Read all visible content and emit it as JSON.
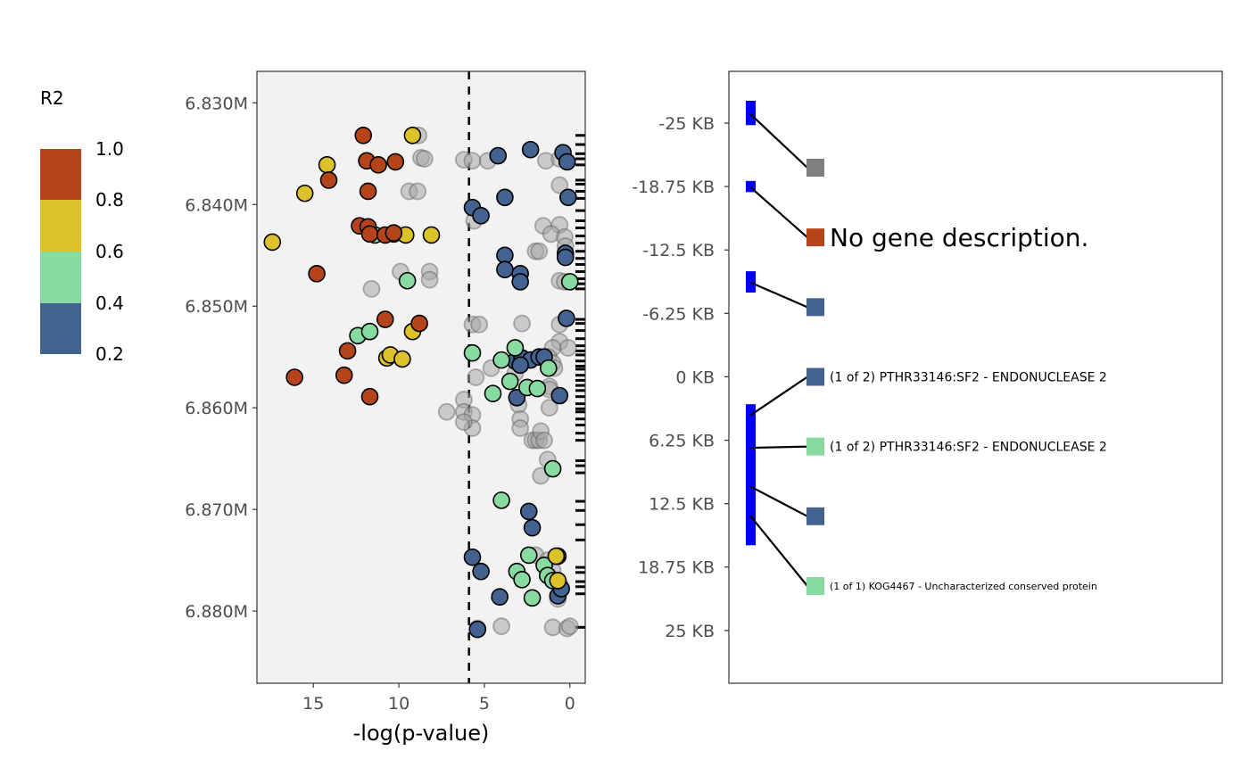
{
  "chart_data": [
    {
      "type": "scatter",
      "xlabel": "-log(p-value)",
      "ylabel": "",
      "xlim": [
        18.3,
        -0.9
      ],
      "x_reversed": true,
      "ylim": [
        6.8269,
        6.8871
      ],
      "x_ticks": [
        15,
        10,
        5,
        0
      ],
      "x_tick_labels": [
        "15",
        "10",
        "5",
        "0"
      ],
      "y_ticks": [
        6.83,
        6.84,
        6.85,
        6.86,
        6.87,
        6.88
      ],
      "y_tick_labels": [
        "6.830M",
        "6.840M",
        "6.850M",
        "6.860M",
        "6.870M",
        "6.880M"
      ],
      "threshold_line": 5.9,
      "grid": false,
      "background": "#F2F2F2",
      "legend": {
        "title": "R2",
        "placement": "left",
        "bins": [
          {
            "label_low": "0.2",
            "label_high": "0.4",
            "color": "#44628F"
          },
          {
            "label_low": "0.4",
            "label_high": "0.6",
            "color": "#87DBA0"
          },
          {
            "label_low": "0.6",
            "label_high": "0.8",
            "color": "#DCC12B"
          },
          {
            "label_low": "0.8",
            "label_high": "1.0",
            "color": "#B5441A"
          }
        ],
        "labels": [
          "1.0",
          "0.8",
          "0.6",
          "0.4",
          "0.2"
        ]
      },
      "series": [
        {
          "r2_bin": "none",
          "color": "#A8A8A8",
          "points": [
            [
              8.85,
              6.8332
            ],
            [
              8.7,
              6.8354
            ],
            [
              8.5,
              6.8355
            ],
            [
              6.2,
              6.8356
            ],
            [
              5.7,
              6.8357
            ],
            [
              4.8,
              6.8357
            ],
            [
              9.4,
              6.8387
            ],
            [
              8.9,
              6.8387
            ],
            [
              1.4,
              6.8357
            ],
            [
              0.6,
              6.8355
            ],
            [
              0.6,
              6.8381
            ],
            [
              1.56,
              6.8421
            ],
            [
              0.6,
              6.842
            ],
            [
              1.1,
              6.8429
            ],
            [
              0.3,
              6.8432
            ],
            [
              0.26,
              6.8441
            ],
            [
              2.0,
              6.8446
            ],
            [
              1.8,
              6.8446
            ],
            [
              5.6,
              6.8416
            ],
            [
              9.9,
              6.8466
            ],
            [
              8.2,
              6.8466
            ],
            [
              8.2,
              6.8474
            ],
            [
              11.6,
              6.8483
            ],
            [
              0.6,
              6.8475
            ],
            [
              0.3,
              6.8476
            ],
            [
              5.7,
              6.8518
            ],
            [
              5.3,
              6.8518
            ],
            [
              2.8,
              6.8517
            ],
            [
              0.6,
              6.8518
            ],
            [
              0.6,
              6.8535
            ],
            [
              0.1,
              6.8541
            ],
            [
              1.0,
              6.8541
            ],
            [
              4.6,
              6.8561
            ],
            [
              5.5,
              6.857
            ],
            [
              6.2,
              6.8592
            ],
            [
              7.2,
              6.8604
            ],
            [
              6.2,
              6.8604
            ],
            [
              5.7,
              6.8607
            ],
            [
              5.7,
              6.862
            ],
            [
              6.2,
              6.8614
            ],
            [
              1.25,
              6.855
            ],
            [
              1.0,
              6.8556
            ],
            [
              0.9,
              6.8561
            ],
            [
              3.2,
              6.8566
            ],
            [
              1.2,
              6.8579
            ],
            [
              3.0,
              6.8597
            ],
            [
              2.9,
              6.8611
            ],
            [
              2.9,
              6.862
            ],
            [
              1.2,
              6.86
            ],
            [
              1.2,
              6.8582
            ],
            [
              2.2,
              6.8632
            ],
            [
              2.0,
              6.8632
            ],
            [
              1.8,
              6.8632
            ],
            [
              1.7,
              6.8623
            ],
            [
              1.5,
              6.8632
            ],
            [
              1.3,
              6.8651
            ],
            [
              1.7,
              6.8667
            ],
            [
              2.0,
              6.8745
            ],
            [
              1.3,
              6.875
            ],
            [
              1.0,
              6.876
            ],
            [
              0.6,
              6.8774
            ],
            [
              0.7,
              6.8788
            ],
            [
              4.0,
              6.8815
            ],
            [
              1.0,
              6.8816
            ],
            [
              0.16,
              6.8817
            ],
            [
              0.0,
              6.8815
            ],
            [
              5.4,
              6.8817
            ]
          ]
        },
        {
          "r2_bin": "0.2-0.4",
          "color": "#44628F",
          "points": [
            [
              4.2,
              6.8352
            ],
            [
              2.3,
              6.8346
            ],
            [
              0.4,
              6.8349
            ],
            [
              0.16,
              6.8358
            ],
            [
              5.7,
              6.8403
            ],
            [
              5.2,
              6.8411
            ],
            [
              3.8,
              6.8393
            ],
            [
              0.1,
              6.8393
            ],
            [
              3.8,
              6.845
            ],
            [
              3.8,
              6.8464
            ],
            [
              2.9,
              6.8468
            ],
            [
              2.9,
              6.8476
            ],
            [
              0.26,
              6.8448
            ],
            [
              0.26,
              6.8452
            ],
            [
              0.2,
              6.8512
            ],
            [
              3.2,
              6.8554
            ],
            [
              2.8,
              6.8551
            ],
            [
              2.3,
              6.8553
            ],
            [
              1.8,
              6.855
            ],
            [
              1.5,
              6.855
            ],
            [
              2.9,
              6.8558
            ],
            [
              3.1,
              6.859
            ],
            [
              0.6,
              6.8588
            ],
            [
              2.4,
              6.8702
            ],
            [
              2.2,
              6.8718
            ],
            [
              5.7,
              6.8747
            ],
            [
              5.2,
              6.8761
            ],
            [
              4.1,
              6.8786
            ],
            [
              5.4,
              6.8818
            ],
            [
              0.7,
              6.8785
            ],
            [
              0.7,
              6.8746
            ],
            [
              0.5,
              6.8778
            ]
          ]
        },
        {
          "r2_bin": "0.4-0.6",
          "color": "#87DBA0",
          "points": [
            [
              11.4,
              6.843
            ],
            [
              9.5,
              6.8475
            ],
            [
              12.4,
              6.8529
            ],
            [
              11.7,
              6.8525
            ],
            [
              5.7,
              6.8546
            ],
            [
              4.0,
              6.8553
            ],
            [
              3.2,
              6.8541
            ],
            [
              1.25,
              6.8561
            ],
            [
              3.5,
              6.8574
            ],
            [
              2.5,
              6.858
            ],
            [
              1.9,
              6.8581
            ],
            [
              4.5,
              6.8586
            ],
            [
              1.0,
              6.866
            ],
            [
              0.0,
              6.8476
            ],
            [
              4.0,
              6.8691
            ],
            [
              2.4,
              6.8745
            ],
            [
              3.1,
              6.8761
            ],
            [
              2.8,
              6.8769
            ],
            [
              2.2,
              6.8787
            ],
            [
              1.5,
              6.8755
            ],
            [
              1.3,
              6.8765
            ],
            [
              1.0,
              6.877
            ]
          ]
        },
        {
          "r2_bin": "0.6-0.8",
          "color": "#DCC12B",
          "points": [
            [
              9.2,
              6.8332
            ],
            [
              14.2,
              6.8361
            ],
            [
              15.5,
              6.8389
            ],
            [
              17.4,
              6.8437
            ],
            [
              10.3,
              6.8429
            ],
            [
              9.6,
              6.843
            ],
            [
              8.1,
              6.843
            ],
            [
              9.2,
              6.8525
            ],
            [
              10.7,
              6.8551
            ],
            [
              10.5,
              6.8548
            ],
            [
              9.8,
              6.8552
            ],
            [
              0.8,
              6.8746
            ],
            [
              0.7,
              6.877
            ]
          ]
        },
        {
          "r2_bin": "0.8-1.0",
          "color": "#B5441A",
          "points": [
            [
              12.08,
              6.8332
            ],
            [
              11.88,
              6.8357
            ],
            [
              11.2,
              6.8361
            ],
            [
              10.2,
              6.8358
            ],
            [
              14.1,
              6.8376
            ],
            [
              11.8,
              6.8387
            ],
            [
              12.3,
              6.8421
            ],
            [
              11.8,
              6.8422
            ],
            [
              11.7,
              6.8429
            ],
            [
              10.8,
              6.843
            ],
            [
              10.3,
              6.8428
            ],
            [
              14.8,
              6.8468
            ],
            [
              10.8,
              6.8513
            ],
            [
              8.8,
              6.8517
            ],
            [
              13.0,
              6.8544
            ],
            [
              13.2,
              6.8568
            ],
            [
              16.1,
              6.857
            ],
            [
              11.7,
              6.8589
            ]
          ]
        }
      ],
      "rug": [
        6.8332,
        6.8341,
        6.835,
        6.8355,
        6.8361,
        6.8376,
        6.838,
        6.8387,
        6.8394,
        6.8406,
        6.8416,
        6.8423,
        6.8431,
        6.8438,
        6.8446,
        6.8453,
        6.8459,
        6.8466,
        6.8473,
        6.8478,
        6.8483,
        6.8513,
        6.8517,
        6.8524,
        6.8532,
        6.8539,
        6.8544,
        6.8548,
        6.8554,
        6.8559,
        6.8562,
        6.8568,
        6.8573,
        6.8578,
        6.8583,
        6.8589,
        6.8596,
        6.8601,
        6.8604,
        6.8611,
        6.8617,
        6.8625,
        6.8632,
        6.8652,
        6.8657,
        6.8664,
        6.8692,
        6.8701,
        6.8715,
        6.873,
        6.8757,
        6.8762,
        6.8771,
        6.8776,
        6.8783,
        6.8816
      ]
    },
    {
      "type": "gene-track",
      "ylim": [
        -30.1,
        30.2
      ],
      "y_ticks": [
        -25,
        -18.75,
        -12.5,
        -6.25,
        0,
        6.25,
        12.5,
        18.75,
        25
      ],
      "y_tick_labels": [
        "-25 KB",
        "-18.75 KB",
        "-12.5 KB",
        "-6.25 KB",
        "0 KB",
        "6.25 KB",
        "12.5 KB",
        "18.75 KB",
        "25 KB"
      ],
      "gene_color": "#0000FF",
      "genes": [
        {
          "start": -27.2,
          "end": -24.8,
          "anchor": -25.9,
          "label": "",
          "color": "#808080"
        },
        {
          "start": -19.3,
          "end": -18.2,
          "anchor": -18.7,
          "label": "No gene description.",
          "color": "#B5441A",
          "label_size": "large"
        },
        {
          "start": -10.4,
          "end": -8.3,
          "anchor": -9.3,
          "label": "",
          "color": "#44628F"
        },
        {
          "start": 2.7,
          "end": 6.2,
          "anchor": 3.8,
          "label": "(1 of 2) PTHR33146:SF2 - ENDONUCLEASE 2",
          "color": "#44628F",
          "label_size": "small"
        },
        {
          "start": 5.2,
          "end": 9.4,
          "anchor": 7.0,
          "label": "(1 of 2) PTHR33146:SF2 - ENDONUCLEASE 2",
          "color": "#87DBA0",
          "label_size": "small"
        },
        {
          "start": 9.0,
          "end": 13.8,
          "anchor": 10.8,
          "label": "",
          "color": "#44628F"
        },
        {
          "start": 12.1,
          "end": 16.6,
          "anchor": 13.7,
          "label": "(1 of 1) KOG4467 - Uncharacterized conserved protein",
          "color": "#87DBA0",
          "label_size": "tiny"
        }
      ]
    }
  ]
}
